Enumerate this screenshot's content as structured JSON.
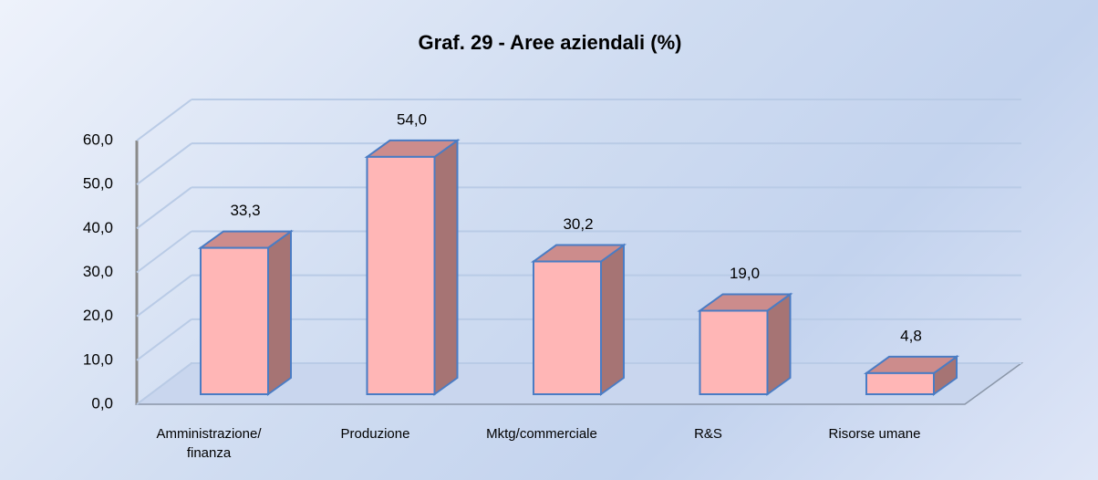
{
  "chart_data": {
    "type": "bar3d",
    "title": "Graf. 29 - Aree aziendali (%)",
    "categories": [
      "Amministrazione/ finanza",
      "Produzione",
      "Mktg/commerciale",
      "R&S",
      "Risorse umane"
    ],
    "values": [
      33.3,
      54.0,
      30.2,
      19.0,
      4.8
    ],
    "value_labels": [
      "33,3",
      "54,0",
      "30,2",
      "19,0",
      "4,8"
    ],
    "color": "#ffb6b6",
    "ylim": [
      0,
      60
    ],
    "yticks": [
      {
        "value": 0,
        "label": "0,0"
      },
      {
        "value": 10,
        "label": "10,0"
      },
      {
        "value": 20,
        "label": "20,0"
      },
      {
        "value": 30,
        "label": "30,0"
      },
      {
        "value": 40,
        "label": "40,0"
      },
      {
        "value": 50,
        "label": "50,0"
      },
      {
        "value": 60,
        "label": "60,0"
      }
    ],
    "grid": true
  }
}
